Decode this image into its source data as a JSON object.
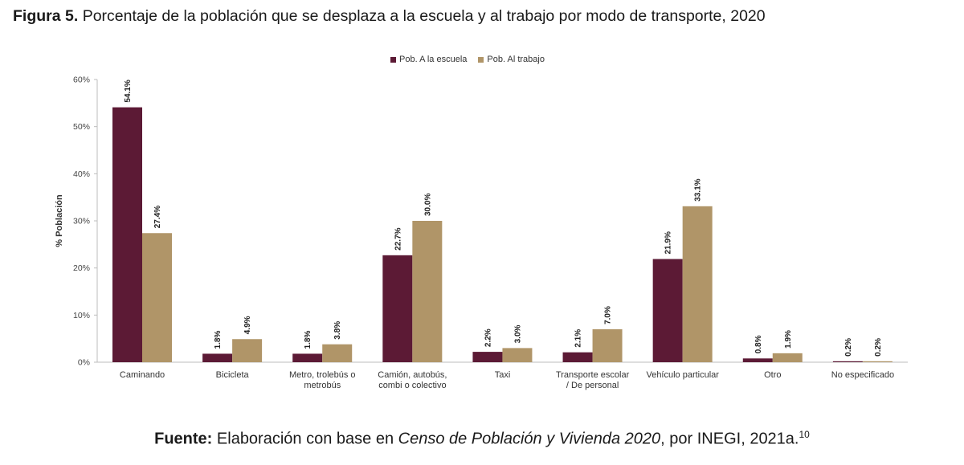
{
  "figure": {
    "label": "Figura 5.",
    "title": "Porcentaje de la población que se desplaza a la escuela y al trabajo por modo de transporte, 2020"
  },
  "source": {
    "label": "Fuente:",
    "text_before": "Elaboración con base en",
    "italic": "Censo de Población y Vivienda 2020",
    "text_after": ", por INEGI, 2021a.",
    "footnote": "10"
  },
  "colors": {
    "escuela": "#5c1a35",
    "trabajo": "#b09568"
  },
  "chart_data": {
    "type": "bar",
    "ylabel": "% Población",
    "ylim": [
      0,
      60
    ],
    "yticks": [
      "0%",
      "10%",
      "20%",
      "30%",
      "40%",
      "50%",
      "60%"
    ],
    "legend_position": "top-center",
    "categories": [
      [
        "Caminando"
      ],
      [
        "Bicicleta"
      ],
      [
        "Metro, trolebús o",
        "metrobús"
      ],
      [
        "Camión, autobús,",
        "combi o colectivo"
      ],
      [
        "Taxi"
      ],
      [
        "Transporte escolar",
        "/ De personal"
      ],
      [
        "Vehículo particular"
      ],
      [
        "Otro"
      ],
      [
        "No especificado"
      ]
    ],
    "series": [
      {
        "name": "Pob. A la escuela",
        "values": [
          54.1,
          1.8,
          1.8,
          22.7,
          2.2,
          2.1,
          21.9,
          0.8,
          0.2
        ],
        "labels": [
          "54.1%",
          "1.8%",
          "1.8%",
          "22.7%",
          "2.2%",
          "2.1%",
          "21.9%",
          "0.8%",
          "0.2%"
        ]
      },
      {
        "name": "Pob. Al trabajo",
        "values": [
          27.4,
          4.9,
          3.8,
          30.0,
          3.0,
          7.0,
          33.1,
          1.9,
          0.2
        ],
        "labels": [
          "27.4%",
          "4.9%",
          "3.8%",
          "30.0%",
          "3.0%",
          "7.0%",
          "33.1%",
          "1.9%",
          "0.2%"
        ]
      }
    ]
  }
}
